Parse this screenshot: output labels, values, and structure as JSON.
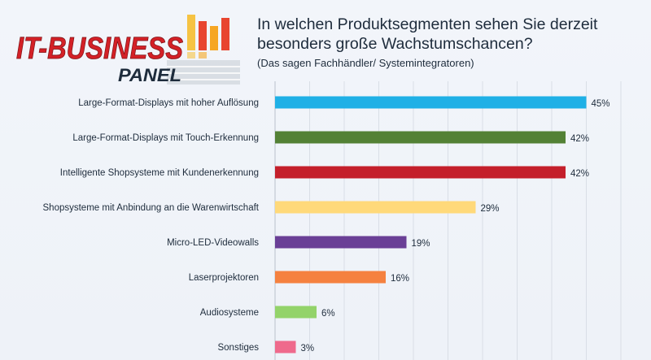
{
  "logo": {
    "line1": "IT-BUSINESS",
    "line2": "PANEL"
  },
  "chart_data": {
    "type": "bar",
    "orientation": "horizontal",
    "title": "In welchen Produktsegmenten sehen Sie derzeit besonders große Wachstumschancen?",
    "subtitle": "(Das sagen Fachhändler/ Systemintegratoren)",
    "categories": [
      "Large-Format-Displays mit hoher Auflösung",
      "Large-Format-Displays mit Touch-Erkennung",
      "Intelligente Shopsysteme mit Kundenerkennung",
      "Shopsysteme mit Anbindung an die Warenwirtschaft",
      "Micro-LED-Videowalls",
      "Laserprojektoren",
      "Audiosysteme",
      "Sonstiges"
    ],
    "values": [
      45,
      42,
      42,
      29,
      19,
      16,
      6,
      3
    ],
    "value_labels": [
      "45%",
      "42%",
      "42%",
      "29%",
      "19%",
      "16%",
      "6%",
      "3%"
    ],
    "colors": [
      "#1fb0e6",
      "#538135",
      "#c41f2b",
      "#ffd97a",
      "#6a3f96",
      "#f5813f",
      "#93d36a",
      "#ef6a8c"
    ],
    "xlim": [
      0,
      50
    ],
    "grid": true,
    "legend": "none"
  }
}
